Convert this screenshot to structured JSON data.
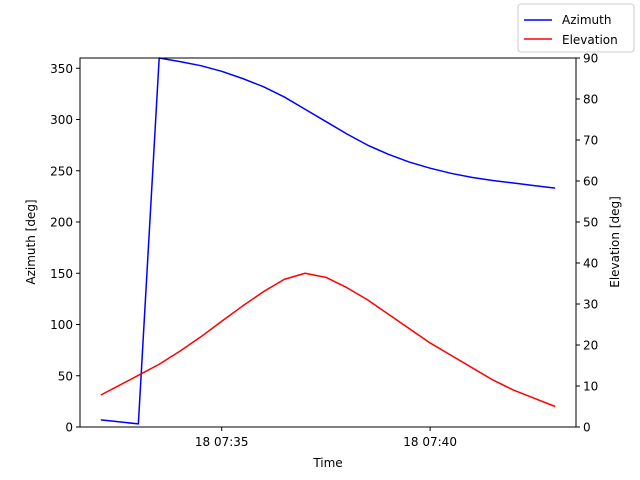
{
  "chart_data": {
    "type": "line",
    "title": "",
    "xlabel": "Time",
    "x_ticks": [
      "18 07:35",
      "18 07:40"
    ],
    "x_tick_minutes": [
      35,
      40
    ],
    "xlim_minutes": [
      31.6,
      43.5
    ],
    "left_axis": {
      "label": "Azimuth [deg]",
      "ylim": [
        0,
        360
      ],
      "ticks": [
        "0",
        "50",
        "100",
        "150",
        "200",
        "250",
        "300",
        "350"
      ]
    },
    "right_axis": {
      "label": "Elevation [deg]",
      "ylim": [
        0,
        90
      ],
      "ticks": [
        "0",
        "10",
        "20",
        "30",
        "40",
        "50",
        "60",
        "70",
        "80",
        "90"
      ]
    },
    "x_minutes": [
      32.1,
      33.0,
      33.5,
      34.0,
      34.5,
      35.0,
      35.5,
      36.0,
      36.5,
      37.0,
      37.5,
      38.0,
      38.5,
      39.0,
      39.5,
      40.0,
      40.5,
      41.0,
      41.5,
      42.0,
      42.5,
      43.0
    ],
    "series": [
      {
        "name": "Azimuth",
        "axis": "left",
        "color": "#0000ff",
        "values": [
          7,
          3,
          360,
          356.5,
          352.5,
          347,
          340,
          332,
          322,
          310,
          298,
          286,
          275,
          266,
          258.5,
          252.5,
          247.5,
          243.5,
          240.5,
          238,
          235.5,
          233
        ]
      },
      {
        "name": "Elevation",
        "axis": "right",
        "color": "#ff0000",
        "values": [
          7.8,
          12.6,
          15.3,
          18.5,
          22.0,
          25.8,
          29.5,
          33.0,
          36.0,
          37.5,
          36.5,
          34.0,
          31.0,
          27.5,
          24.0,
          20.5,
          17.5,
          14.5,
          11.5,
          9.0,
          7.0,
          5.0
        ]
      }
    ],
    "grid": false,
    "legend_position": "top-right",
    "legend": [
      "Azimuth",
      "Elevation"
    ]
  }
}
